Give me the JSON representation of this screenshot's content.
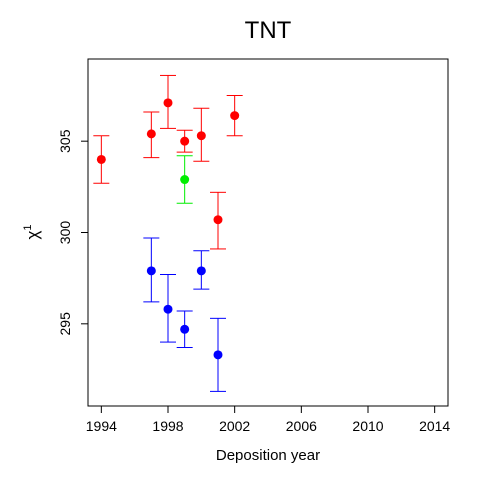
{
  "chart_data": {
    "type": "scatter",
    "title": "TNT",
    "xlabel": "Deposition year",
    "ylabel_base": "χ",
    "ylabel_sup": "1",
    "xlim": [
      1993.2,
      2014.8
    ],
    "ylim": [
      290.5,
      309.5
    ],
    "xticks": [
      1994,
      1998,
      2002,
      2006,
      2010,
      2014
    ],
    "yticks": [
      295,
      300,
      305
    ],
    "grid": false,
    "series": [
      {
        "color": "#ff0000",
        "points": [
          {
            "x": 1994,
            "y": 304.0,
            "lo": 302.7,
            "hi": 305.3
          },
          {
            "x": 1997,
            "y": 305.4,
            "lo": 304.1,
            "hi": 306.6
          },
          {
            "x": 1998,
            "y": 307.1,
            "lo": 305.7,
            "hi": 308.6
          },
          {
            "x": 1999,
            "y": 305.0,
            "lo": 304.4,
            "hi": 305.6
          },
          {
            "x": 2000,
            "y": 305.3,
            "lo": 303.9,
            "hi": 306.8
          },
          {
            "x": 2001,
            "y": 300.7,
            "lo": 299.1,
            "hi": 302.2
          },
          {
            "x": 2002,
            "y": 306.4,
            "lo": 305.3,
            "hi": 307.5
          }
        ]
      },
      {
        "color": "#00ee00",
        "points": [
          {
            "x": 1999,
            "y": 302.9,
            "lo": 301.6,
            "hi": 304.2
          }
        ]
      },
      {
        "color": "#0000ff",
        "points": [
          {
            "x": 1997,
            "y": 297.9,
            "lo": 296.2,
            "hi": 299.7
          },
          {
            "x": 1998,
            "y": 295.8,
            "lo": 294.0,
            "hi": 297.7
          },
          {
            "x": 1999,
            "y": 294.7,
            "lo": 293.7,
            "hi": 295.7
          },
          {
            "x": 2000,
            "y": 297.9,
            "lo": 296.9,
            "hi": 299.0
          },
          {
            "x": 2001,
            "y": 293.3,
            "lo": 291.3,
            "hi": 295.3
          }
        ]
      }
    ]
  }
}
